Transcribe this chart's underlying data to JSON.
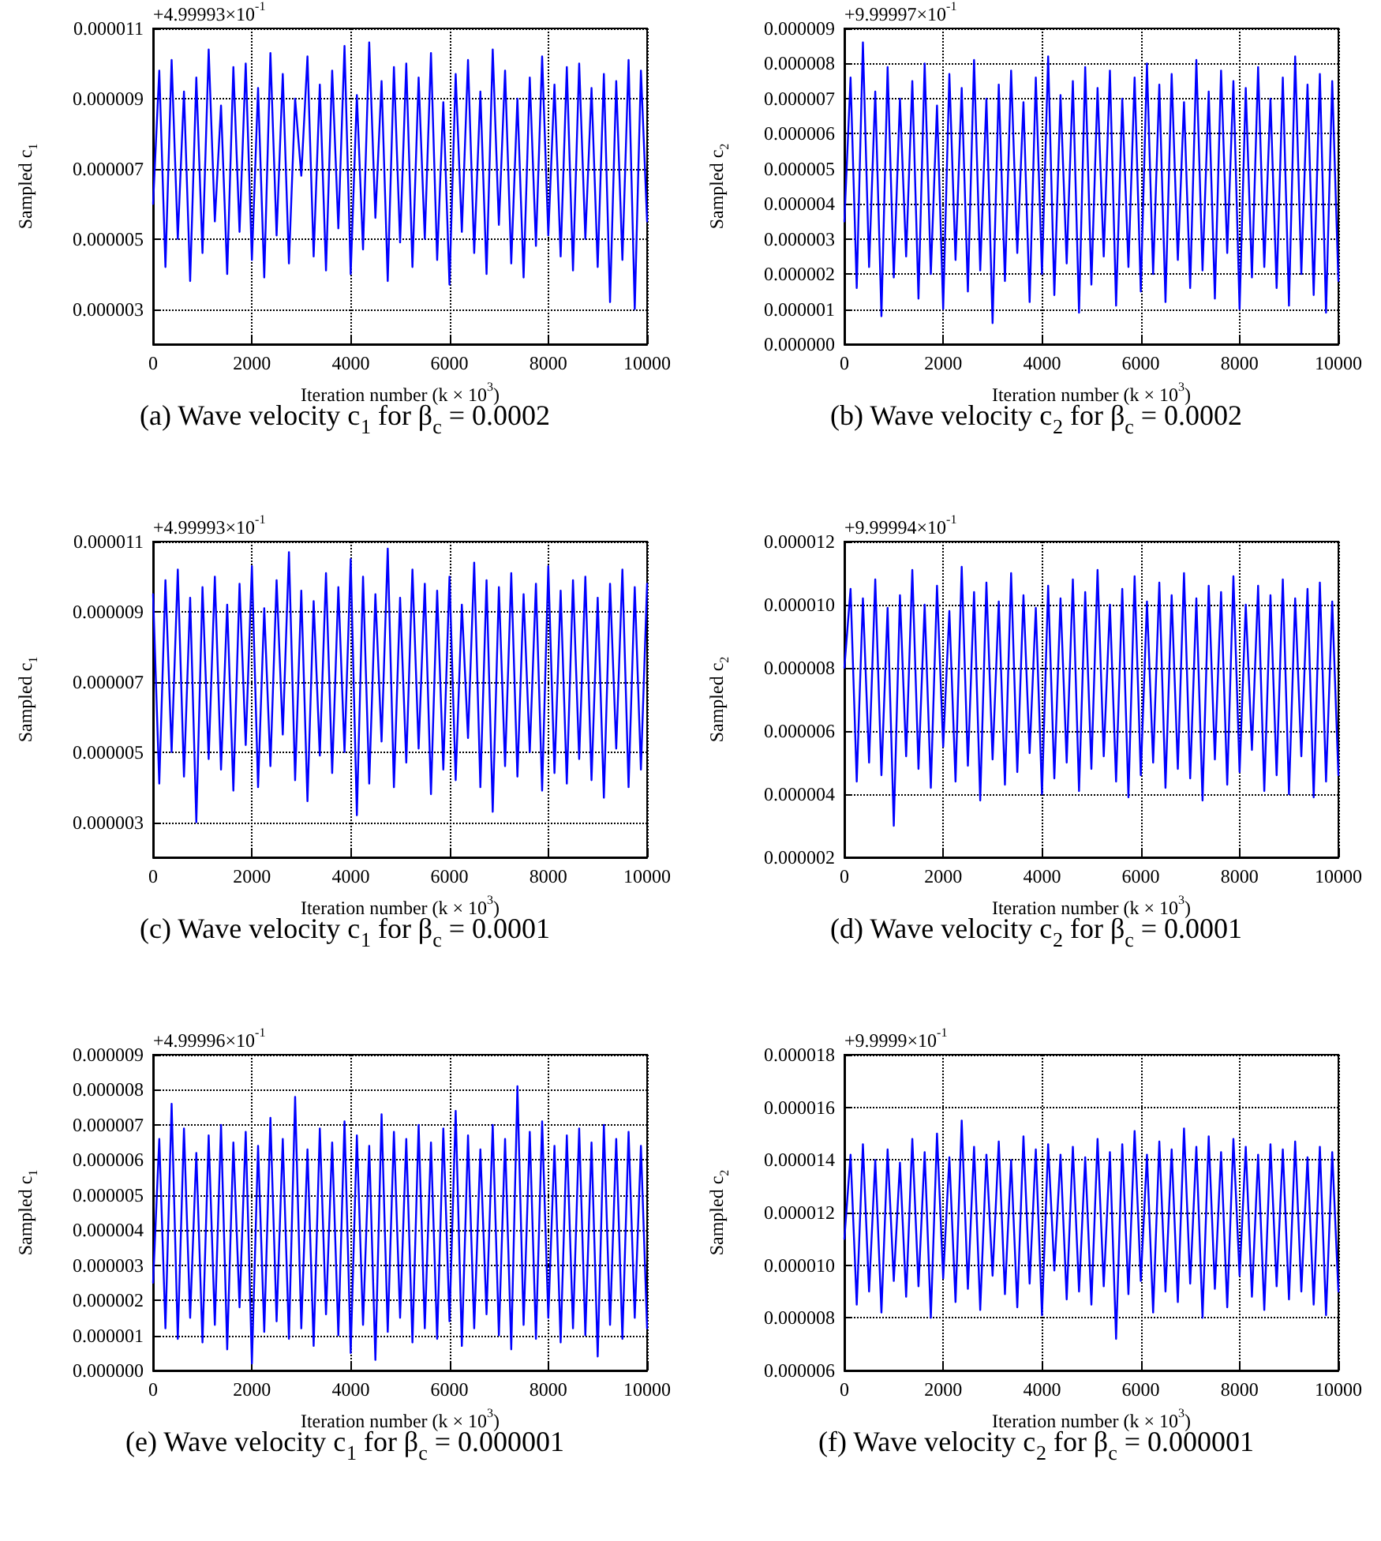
{
  "chart_data": [
    {
      "type": "line",
      "xlabel": "Iteration number (k × 10$^{3}$)",
      "ylabel": "Sampled c$_{1}$",
      "annotations": [
        "+4.99993×10$^{-1}$",
        "(a) Wave velocity c$_{1}$ for β$_{c}$ = 0.0002"
      ],
      "grid": true,
      "xlim": [
        0,
        10000
      ],
      "xticks": [
        0,
        2000,
        4000,
        6000,
        8000,
        10000
      ],
      "ylim": [
        2e-06,
        1.1e-05
      ],
      "yticks": [
        {
          "value": 3e-06,
          "label": "0.000003"
        },
        {
          "value": 5e-06,
          "label": "0.000005"
        },
        {
          "value": 7e-06,
          "label": "0.000007"
        },
        {
          "value": 9e-06,
          "label": "0.000009"
        },
        {
          "value": 1.1e-05,
          "label": "0.000011"
        }
      ],
      "x": [
        0,
        125,
        250,
        375,
        500,
        625,
        750,
        875,
        1000,
        1125,
        1250,
        1375,
        1500,
        1625,
        1750,
        1875,
        2000,
        2125,
        2250,
        2375,
        2500,
        2625,
        2750,
        2875,
        3000,
        3125,
        3250,
        3375,
        3500,
        3625,
        3750,
        3875,
        4000,
        4125,
        4250,
        4375,
        4500,
        4625,
        4750,
        4875,
        5000,
        5125,
        5250,
        5375,
        5500,
        5625,
        5750,
        5875,
        6000,
        6125,
        6250,
        6375,
        6500,
        6625,
        6750,
        6875,
        7000,
        7125,
        7250,
        7375,
        7500,
        7625,
        7750,
        7875,
        8000,
        8125,
        8250,
        8375,
        8500,
        8625,
        8750,
        8875,
        9000,
        9125,
        9250,
        9375,
        9500,
        9625,
        9750,
        9875,
        10000
      ],
      "color": "#0000ff",
      "values": [
        6e-06,
        9.8e-06,
        4.2e-06,
        1.01e-05,
        5e-06,
        9.2e-06,
        3.8e-06,
        9.6e-06,
        4.6e-06,
        1.04e-05,
        5.5e-06,
        8.8e-06,
        4e-06,
        9.9e-06,
        5.2e-06,
        1e-05,
        4.4e-06,
        9.3e-06,
        3.9e-06,
        1.03e-05,
        5.1e-06,
        9.7e-06,
        4.3e-06,
        9e-06,
        6.8e-06,
        1.02e-05,
        4.5e-06,
        9.4e-06,
        4.1e-06,
        9.8e-06,
        5.3e-06,
        1.05e-05,
        4e-06,
        9.1e-06,
        4.7e-06,
        1.06e-05,
        5.6e-06,
        9.5e-06,
        3.8e-06,
        9.9e-06,
        4.9e-06,
        1e-05,
        4.2e-06,
        9.6e-06,
        5e-06,
        1.03e-05,
        4.4e-06,
        8.9e-06,
        3.7e-06,
        9.7e-06,
        5.2e-06,
        1.01e-05,
        4.6e-06,
        9.2e-06,
        4e-06,
        1.04e-05,
        5.4e-06,
        9.8e-06,
        4.3e-06,
        9e-06,
        3.9e-06,
        9.6e-06,
        4.8e-06,
        1.02e-05,
        5.1e-06,
        9.4e-06,
        4.5e-06,
        9.9e-06,
        4.1e-06,
        1e-05,
        5e-06,
        9.3e-06,
        4.2e-06,
        9.7e-06,
        3.2e-06,
        9.5e-06,
        4.4e-06,
        1.01e-05,
        3e-06,
        9.8e-06,
        5.5e-06
      ]
    },
    {
      "type": "line",
      "xlabel": "Iteration number (k × 10$^{3}$)",
      "ylabel": "Sampled c$_{2}$",
      "annotations": [
        "+9.99997×10$^{-1}$",
        "(b) Wave velocity c$_{2}$ for β$_{c}$ = 0.0002"
      ],
      "grid": true,
      "xlim": [
        0,
        10000
      ],
      "xticks": [
        0,
        2000,
        4000,
        6000,
        8000,
        10000
      ],
      "ylim": [
        0,
        9e-06
      ],
      "yticks": [
        {
          "value": 0,
          "label": "0.000000"
        },
        {
          "value": 1e-06,
          "label": "0.000001"
        },
        {
          "value": 2e-06,
          "label": "0.000002"
        },
        {
          "value": 3e-06,
          "label": "0.000003"
        },
        {
          "value": 4e-06,
          "label": "0.000004"
        },
        {
          "value": 5e-06,
          "label": "0.000005"
        },
        {
          "value": 6e-06,
          "label": "0.000006"
        },
        {
          "value": 7e-06,
          "label": "0.000007"
        },
        {
          "value": 8e-06,
          "label": "0.000008"
        },
        {
          "value": 9e-06,
          "label": "0.000009"
        }
      ],
      "x": [
        0,
        125,
        250,
        375,
        500,
        625,
        750,
        875,
        1000,
        1125,
        1250,
        1375,
        1500,
        1625,
        1750,
        1875,
        2000,
        2125,
        2250,
        2375,
        2500,
        2625,
        2750,
        2875,
        3000,
        3125,
        3250,
        3375,
        3500,
        3625,
        3750,
        3875,
        4000,
        4125,
        4250,
        4375,
        4500,
        4625,
        4750,
        4875,
        5000,
        5125,
        5250,
        5375,
        5500,
        5625,
        5750,
        5875,
        6000,
        6125,
        6250,
        6375,
        6500,
        6625,
        6750,
        6875,
        7000,
        7125,
        7250,
        7375,
        7500,
        7625,
        7750,
        7875,
        8000,
        8125,
        8250,
        8375,
        8500,
        8625,
        8750,
        8875,
        9000,
        9125,
        9250,
        9375,
        9500,
        9625,
        9750,
        9875,
        10000
      ],
      "color": "#0000ff",
      "values": [
        3.5e-06,
        7.6e-06,
        1.6e-06,
        8.6e-06,
        2.2e-06,
        7.2e-06,
        8e-07,
        7.9e-06,
        1.9e-06,
        7e-06,
        2.5e-06,
        7.5e-06,
        1.3e-06,
        8e-06,
        2e-06,
        6.8e-06,
        1e-06,
        7.7e-06,
        2.4e-06,
        7.3e-06,
        1.5e-06,
        8.1e-06,
        2.1e-06,
        7e-06,
        6e-07,
        7.4e-06,
        1.8e-06,
        7.8e-06,
        2.6e-06,
        6.9e-06,
        1.2e-06,
        7.6e-06,
        2e-06,
        8.2e-06,
        1.4e-06,
        7.1e-06,
        2.3e-06,
        7.5e-06,
        9e-07,
        7.9e-06,
        1.7e-06,
        7.3e-06,
        2.5e-06,
        7.8e-06,
        1.1e-06,
        7e-06,
        2.2e-06,
        7.6e-06,
        1.5e-06,
        8e-06,
        2e-06,
        7.4e-06,
        1.2e-06,
        7.7e-06,
        2.4e-06,
        6.9e-06,
        1.6e-06,
        8.1e-06,
        2.1e-06,
        7.2e-06,
        1.3e-06,
        7.8e-06,
        2.6e-06,
        7.5e-06,
        1e-06,
        7.3e-06,
        1.9e-06,
        7.9e-06,
        2.2e-06,
        7e-06,
        1.6e-06,
        7.6e-06,
        1.1e-06,
        8.2e-06,
        2e-06,
        7.4e-06,
        1.4e-06,
        7.7e-06,
        9e-07,
        7.5e-06,
        1.8e-06
      ]
    },
    {
      "type": "line",
      "xlabel": "Iteration number (k × 10$^{3}$)",
      "ylabel": "Sampled c$_{1}$",
      "annotations": [
        "+4.99993×10$^{-1}$",
        "(c) Wave velocity c$_{1}$ for β$_{c}$ = 0.0001"
      ],
      "grid": true,
      "xlim": [
        0,
        10000
      ],
      "xticks": [
        0,
        2000,
        4000,
        6000,
        8000,
        10000
      ],
      "ylim": [
        2e-06,
        1.1e-05
      ],
      "yticks": [
        {
          "value": 3e-06,
          "label": "0.000003"
        },
        {
          "value": 5e-06,
          "label": "0.000005"
        },
        {
          "value": 7e-06,
          "label": "0.000007"
        },
        {
          "value": 9e-06,
          "label": "0.000009"
        },
        {
          "value": 1.1e-05,
          "label": "0.000011"
        }
      ],
      "x": [
        0,
        125,
        250,
        375,
        500,
        625,
        750,
        875,
        1000,
        1125,
        1250,
        1375,
        1500,
        1625,
        1750,
        1875,
        2000,
        2125,
        2250,
        2375,
        2500,
        2625,
        2750,
        2875,
        3000,
        3125,
        3250,
        3375,
        3500,
        3625,
        3750,
        3875,
        4000,
        4125,
        4250,
        4375,
        4500,
        4625,
        4750,
        4875,
        5000,
        5125,
        5250,
        5375,
        5500,
        5625,
        5750,
        5875,
        6000,
        6125,
        6250,
        6375,
        6500,
        6625,
        6750,
        6875,
        7000,
        7125,
        7250,
        7375,
        7500,
        7625,
        7750,
        7875,
        8000,
        8125,
        8250,
        8375,
        8500,
        8625,
        8750,
        8875,
        9000,
        9125,
        9250,
        9375,
        9500,
        9625,
        9750,
        9875,
        10000
      ],
      "color": "#0000ff",
      "values": [
        9.5e-06,
        4.1e-06,
        9.9e-06,
        5e-06,
        1.02e-05,
        4.3e-06,
        9.4e-06,
        3e-06,
        9.7e-06,
        4.8e-06,
        1e-05,
        4.5e-06,
        9.2e-06,
        3.9e-06,
        9.8e-06,
        5.2e-06,
        1.03e-05,
        4e-06,
        9.1e-06,
        4.6e-06,
        9.9e-06,
        5.5e-06,
        1.07e-05,
        4.2e-06,
        9.6e-06,
        3.6e-06,
        9.3e-06,
        4.9e-06,
        1.01e-05,
        4.4e-06,
        9.7e-06,
        5e-06,
        1.05e-05,
        3.2e-06,
        1e-05,
        4.1e-06,
        9.5e-06,
        5.3e-06,
        1.08e-05,
        4e-06,
        9.4e-06,
        4.7e-06,
        1.02e-05,
        5.1e-06,
        9.8e-06,
        3.8e-06,
        9.6e-06,
        4.5e-06,
        1e-05,
        4.2e-06,
        9.2e-06,
        5.4e-06,
        1.04e-05,
        4e-06,
        9.9e-06,
        3.3e-06,
        9.7e-06,
        4.6e-06,
        1.01e-05,
        4.3e-06,
        9.5e-06,
        5e-06,
        9.8e-06,
        3.9e-06,
        1.03e-05,
        4.4e-06,
        9.6e-06,
        4.1e-06,
        9.9e-06,
        4.8e-06,
        1e-05,
        4.2e-06,
        9.4e-06,
        3.7e-06,
        9.8e-06,
        5.1e-06,
        1.02e-05,
        4e-06,
        9.7e-06,
        4.5e-06,
        9.8e-06
      ]
    },
    {
      "type": "line",
      "xlabel": "Iteration number (k × 10$^{3}$)",
      "ylabel": "Sampled c$_{2}$",
      "annotations": [
        "+9.99994×10$^{-1}$",
        "(d) Wave velocity c$_{2}$ for β$_{c}$ = 0.0001"
      ],
      "grid": true,
      "xlim": [
        0,
        10000
      ],
      "xticks": [
        0,
        2000,
        4000,
        6000,
        8000,
        10000
      ],
      "ylim": [
        2e-06,
        1.2e-05
      ],
      "yticks": [
        {
          "value": 2e-06,
          "label": "0.000002"
        },
        {
          "value": 4e-06,
          "label": "0.000004"
        },
        {
          "value": 6e-06,
          "label": "0.000006"
        },
        {
          "value": 8e-06,
          "label": "0.000008"
        },
        {
          "value": 1e-05,
          "label": "0.000010"
        },
        {
          "value": 1.2e-05,
          "label": "0.000012"
        }
      ],
      "x": [
        0,
        125,
        250,
        375,
        500,
        625,
        750,
        875,
        1000,
        1125,
        1250,
        1375,
        1500,
        1625,
        1750,
        1875,
        2000,
        2125,
        2250,
        2375,
        2500,
        2625,
        2750,
        2875,
        3000,
        3125,
        3250,
        3375,
        3500,
        3625,
        3750,
        3875,
        4000,
        4125,
        4250,
        4375,
        4500,
        4625,
        4750,
        4875,
        5000,
        5125,
        5250,
        5375,
        5500,
        5625,
        5750,
        5875,
        6000,
        6125,
        6250,
        6375,
        6500,
        6625,
        6750,
        6875,
        7000,
        7125,
        7250,
        7375,
        7500,
        7625,
        7750,
        7875,
        8000,
        8125,
        8250,
        8375,
        8500,
        8625,
        8750,
        8875,
        9000,
        9125,
        9250,
        9375,
        9500,
        9625,
        9750,
        9875,
        10000
      ],
      "color": "#0000ff",
      "values": [
        8e-06,
        1.05e-05,
        4.4e-06,
        1.02e-05,
        5e-06,
        1.08e-05,
        4.6e-06,
        9.9e-06,
        3e-06,
        1.03e-05,
        5.2e-06,
        1.11e-05,
        4.8e-06,
        1e-05,
        4.2e-06,
        1.06e-05,
        5.5e-06,
        9.8e-06,
        4.4e-06,
        1.12e-05,
        4.9e-06,
        1.04e-05,
        3.8e-06,
        1.07e-05,
        5.1e-06,
        1.01e-05,
        4.3e-06,
        1.1e-05,
        4.7e-06,
        1.03e-05,
        5.3e-06,
        9.9e-06,
        4e-06,
        1.06e-05,
        4.5e-06,
        1.02e-05,
        5e-06,
        1.08e-05,
        4.1e-06,
        1.04e-05,
        4.8e-06,
        1.11e-05,
        5.2e-06,
        1e-05,
        4.4e-06,
        1.05e-05,
        3.9e-06,
        1.09e-05,
        4.6e-06,
        1.01e-05,
        5e-06,
        1.07e-05,
        4.2e-06,
        1.03e-05,
        4.8e-06,
        1.1e-05,
        4.5e-06,
        1.02e-05,
        3.8e-06,
        1.06e-05,
        5.1e-06,
        1.04e-05,
        4.3e-06,
        1.09e-05,
        4.7e-06,
        1e-05,
        5.4e-06,
        1.06e-05,
        4.1e-06,
        1.03e-05,
        4.6e-06,
        1.08e-05,
        4e-06,
        1.02e-05,
        5.2e-06,
        1.05e-05,
        3.9e-06,
        1.07e-05,
        4.4e-06,
        1.01e-05,
        4.6e-06
      ]
    },
    {
      "type": "line",
      "xlabel": "Iteration number (k × 10$^{3}$)",
      "ylabel": "Sampled c$_{1}$",
      "annotations": [
        "+4.99996×10$^{-1}$",
        "(e) Wave velocity c$_{1}$ for β$_{c}$ = 0.000001"
      ],
      "grid": true,
      "xlim": [
        0,
        10000
      ],
      "xticks": [
        0,
        2000,
        4000,
        6000,
        8000,
        10000
      ],
      "ylim": [
        0,
        9e-06
      ],
      "yticks": [
        {
          "value": 0,
          "label": "0.000000"
        },
        {
          "value": 1e-06,
          "label": "0.000001"
        },
        {
          "value": 2e-06,
          "label": "0.000002"
        },
        {
          "value": 3e-06,
          "label": "0.000003"
        },
        {
          "value": 4e-06,
          "label": "0.000004"
        },
        {
          "value": 5e-06,
          "label": "0.000005"
        },
        {
          "value": 6e-06,
          "label": "0.000006"
        },
        {
          "value": 7e-06,
          "label": "0.000007"
        },
        {
          "value": 8e-06,
          "label": "0.000008"
        },
        {
          "value": 9e-06,
          "label": "0.000009"
        }
      ],
      "x": [
        0,
        125,
        250,
        375,
        500,
        625,
        750,
        875,
        1000,
        1125,
        1250,
        1375,
        1500,
        1625,
        1750,
        1875,
        2000,
        2125,
        2250,
        2375,
        2500,
        2625,
        2750,
        2875,
        3000,
        3125,
        3250,
        3375,
        3500,
        3625,
        3750,
        3875,
        4000,
        4125,
        4250,
        4375,
        4500,
        4625,
        4750,
        4875,
        5000,
        5125,
        5250,
        5375,
        5500,
        5625,
        5750,
        5875,
        6000,
        6125,
        6250,
        6375,
        6500,
        6625,
        6750,
        6875,
        7000,
        7125,
        7250,
        7375,
        7500,
        7625,
        7750,
        7875,
        8000,
        8125,
        8250,
        8375,
        8500,
        8625,
        8750,
        8875,
        9000,
        9125,
        9250,
        9375,
        9500,
        9625,
        9750,
        9875,
        10000
      ],
      "color": "#0000ff",
      "values": [
        2.5e-06,
        6.6e-06,
        1.2e-06,
        7.6e-06,
        9e-07,
        6.9e-06,
        1.5e-06,
        6.2e-06,
        8e-07,
        6.7e-06,
        1.3e-06,
        7e-06,
        6e-07,
        6.5e-06,
        1.8e-06,
        6.8e-06,
        2e-07,
        6.4e-06,
        1.1e-06,
        7.2e-06,
        1.4e-06,
        6.6e-06,
        9e-07,
        7.8e-06,
        1.2e-06,
        6.3e-06,
        7e-07,
        6.9e-06,
        1.6e-06,
        6.5e-06,
        1e-06,
        7.1e-06,
        5e-07,
        6.7e-06,
        1.3e-06,
        6.4e-06,
        3e-07,
        7.3e-06,
        1.1e-06,
        6.8e-06,
        1.5e-06,
        6.6e-06,
        8e-07,
        7e-06,
        1.2e-06,
        6.5e-06,
        9e-07,
        6.9e-06,
        1.4e-06,
        7.4e-06,
        7e-07,
        6.7e-06,
        1.2e-06,
        6.3e-06,
        1.6e-06,
        7e-06,
        1e-06,
        6.6e-06,
        6e-07,
        8.1e-06,
        1.3e-06,
        6.8e-06,
        9e-07,
        7.1e-06,
        1.5e-06,
        6.4e-06,
        8e-07,
        6.7e-06,
        1.2e-06,
        6.9e-06,
        1e-06,
        6.5e-06,
        4e-07,
        7e-06,
        1.3e-06,
        6.6e-06,
        9e-07,
        6.8e-06,
        1.5e-06,
        6.4e-06,
        1.2e-06
      ]
    },
    {
      "type": "line",
      "xlabel": "Iteration number (k × 10$^{3}$)",
      "ylabel": "Sampled c$_{2}$",
      "annotations": [
        "+9.9999×10$^{-1}$",
        "(f) Wave velocity c$_{2}$ for β$_{c}$ = 0.000001"
      ],
      "grid": true,
      "xlim": [
        0,
        10000
      ],
      "xticks": [
        0,
        2000,
        4000,
        6000,
        8000,
        10000
      ],
      "ylim": [
        6e-06,
        1.8e-05
      ],
      "yticks": [
        {
          "value": 6e-06,
          "label": "0.000006"
        },
        {
          "value": 8e-06,
          "label": "0.000008"
        },
        {
          "value": 1e-05,
          "label": "0.000010"
        },
        {
          "value": 1.2e-05,
          "label": "0.000012"
        },
        {
          "value": 1.4e-05,
          "label": "0.000014"
        },
        {
          "value": 1.6e-05,
          "label": "0.000016"
        },
        {
          "value": 1.8e-05,
          "label": "0.000018"
        }
      ],
      "x": [
        0,
        125,
        250,
        375,
        500,
        625,
        750,
        875,
        1000,
        1125,
        1250,
        1375,
        1500,
        1625,
        1750,
        1875,
        2000,
        2125,
        2250,
        2375,
        2500,
        2625,
        2750,
        2875,
        3000,
        3125,
        3250,
        3375,
        3500,
        3625,
        3750,
        3875,
        4000,
        4125,
        4250,
        4375,
        4500,
        4625,
        4750,
        4875,
        5000,
        5125,
        5250,
        5375,
        5500,
        5625,
        5750,
        5875,
        6000,
        6125,
        6250,
        6375,
        6500,
        6625,
        6750,
        6875,
        7000,
        7125,
        7250,
        7375,
        7500,
        7625,
        7750,
        7875,
        8000,
        8125,
        8250,
        8375,
        8500,
        8625,
        8750,
        8875,
        9000,
        9125,
        9250,
        9375,
        9500,
        9625,
        9750,
        9875,
        10000
      ],
      "color": "#0000ff",
      "values": [
        1.1e-05,
        1.42e-05,
        8.5e-06,
        1.46e-05,
        9e-06,
        1.4e-05,
        8.2e-06,
        1.44e-05,
        9.4e-06,
        1.39e-05,
        8.8e-06,
        1.48e-05,
        9.2e-06,
        1.43e-05,
        8e-06,
        1.5e-05,
        9.5e-06,
        1.41e-05,
        8.6e-06,
        1.55e-05,
        9.1e-06,
        1.45e-05,
        8.3e-06,
        1.42e-05,
        9.6e-06,
        1.47e-05,
        8.9e-06,
        1.4e-05,
        8.4e-06,
        1.49e-05,
        9.3e-06,
        1.44e-05,
        8.1e-06,
        1.46e-05,
        9.8e-06,
        1.42e-05,
        8.7e-06,
        1.45e-05,
        9e-06,
        1.41e-05,
        8.5e-06,
        1.48e-05,
        9.2e-06,
        1.43e-05,
        7.2e-06,
        1.46e-05,
        8.9e-06,
        1.51e-05,
        9.4e-06,
        1.42e-05,
        8.2e-06,
        1.47e-05,
        9e-06,
        1.44e-05,
        8.6e-06,
        1.52e-05,
        9.3e-06,
        1.45e-05,
        8e-06,
        1.49e-05,
        9.1e-06,
        1.43e-05,
        8.4e-06,
        1.48e-05,
        9.6e-06,
        1.45e-05,
        8.8e-06,
        1.42e-05,
        8.3e-06,
        1.46e-05,
        9.2e-06,
        1.44e-05,
        8.7e-06,
        1.47e-05,
        9e-06,
        1.41e-05,
        8.5e-06,
        1.45e-05,
        8.1e-06,
        1.43e-05,
        9e-06
      ]
    }
  ]
}
